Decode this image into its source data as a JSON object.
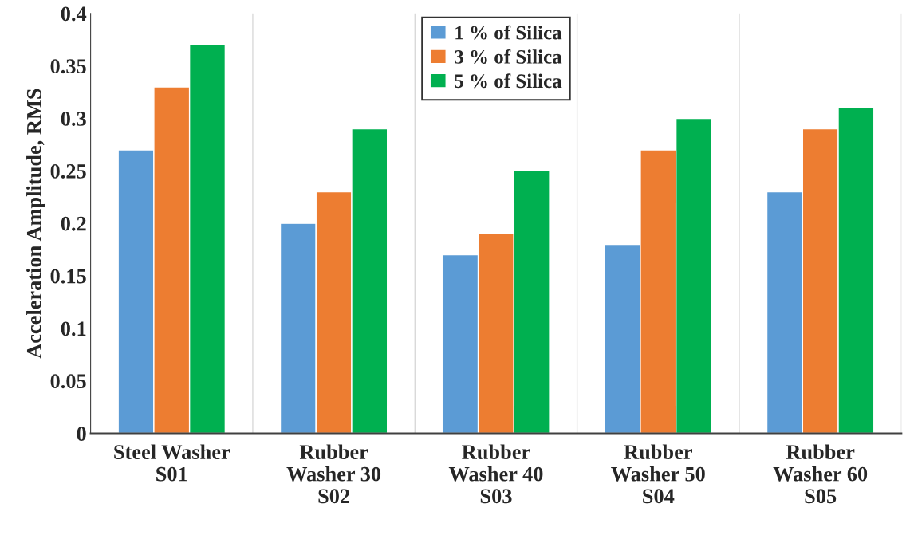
{
  "chart_data": {
    "type": "bar",
    "ylabel": "Acceleration Amplitude, RMS",
    "categories": [
      "Steel Washer\nS01",
      "Rubber\nWasher 30\nS02",
      "Rubber\nWasher 40\nS03",
      "Rubber\nWasher 50\nS04",
      "Rubber\nWasher 60\nS05"
    ],
    "series": [
      {
        "name": "1 % of Silica",
        "color": "#5b9bd5",
        "values": [
          0.27,
          0.2,
          0.17,
          0.18,
          0.23
        ]
      },
      {
        "name": "3 % of Silica",
        "color": "#ed7d31",
        "values": [
          0.33,
          0.23,
          0.19,
          0.27,
          0.29
        ]
      },
      {
        "name": "5 % of Silica",
        "color": "#00b050",
        "values": [
          0.37,
          0.29,
          0.25,
          0.3,
          0.31
        ]
      }
    ],
    "ylim": [
      0,
      0.4
    ],
    "yticks": [
      0,
      0.05,
      0.1,
      0.15,
      0.2,
      0.25,
      0.3,
      0.35,
      0.4
    ],
    "grid": "x",
    "legend": "top"
  }
}
